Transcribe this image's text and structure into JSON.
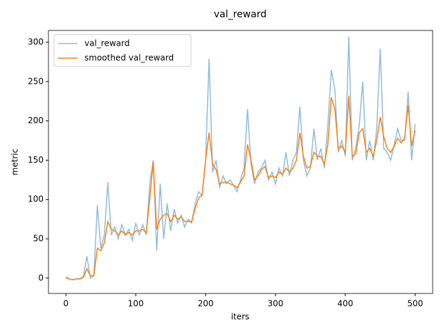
{
  "chart_data": {
    "type": "line",
    "title": "val_reward",
    "x_label": "iters",
    "y_label": "metric",
    "x": [
      0,
      5,
      10,
      15,
      20,
      25,
      30,
      35,
      40,
      45,
      50,
      55,
      60,
      65,
      70,
      75,
      80,
      85,
      90,
      95,
      100,
      105,
      110,
      115,
      120,
      125,
      130,
      135,
      140,
      145,
      150,
      155,
      160,
      165,
      170,
      175,
      180,
      185,
      190,
      195,
      200,
      205,
      210,
      215,
      220,
      225,
      230,
      235,
      240,
      245,
      250,
      255,
      260,
      265,
      270,
      275,
      280,
      285,
      290,
      295,
      300,
      305,
      310,
      315,
      320,
      325,
      330,
      335,
      340,
      345,
      350,
      355,
      360,
      365,
      370,
      375,
      380,
      385,
      390,
      395,
      400,
      405,
      410,
      415,
      420,
      425,
      430,
      435,
      440,
      445,
      450,
      455,
      460,
      465,
      470,
      475,
      480,
      485,
      490,
      495,
      500
    ],
    "series": [
      {
        "name": "val_reward",
        "color": "#1f77b4",
        "alpha": 0.5,
        "values": [
          2,
          -1,
          -2,
          -1,
          -1,
          2,
          28,
          0,
          3,
          93,
          38,
          55,
          122,
          55,
          65,
          50,
          68,
          55,
          62,
          48,
          70,
          55,
          68,
          55,
          120,
          150,
          35,
          120,
          50,
          95,
          60,
          88,
          70,
          80,
          65,
          75,
          70,
          95,
          110,
          105,
          150,
          279,
          135,
          150,
          115,
          130,
          120,
          125,
          118,
          110,
          125,
          140,
          215,
          145,
          120,
          135,
          140,
          150,
          125,
          135,
          120,
          140,
          130,
          160,
          130,
          150,
          160,
          218,
          150,
          130,
          140,
          190,
          150,
          165,
          140,
          195,
          265,
          240,
          160,
          175,
          155,
          307,
          150,
          165,
          195,
          250,
          150,
          175,
          150,
          190,
          292,
          165,
          160,
          150,
          170,
          190,
          175,
          175,
          237,
          150,
          196
        ]
      },
      {
        "name": "smoothed val_reward",
        "color": "#ff7f0e",
        "alpha": 1,
        "values": [
          0,
          -1,
          -2,
          -1,
          -1,
          1,
          12,
          3,
          3,
          38,
          35,
          45,
          72,
          62,
          60,
          55,
          60,
          55,
          58,
          55,
          60,
          60,
          62,
          58,
          100,
          148,
          62,
          75,
          80,
          82,
          72,
          80,
          75,
          78,
          72,
          72,
          72,
          88,
          102,
          106,
          150,
          185,
          145,
          138,
          120,
          122,
          122,
          120,
          118,
          115,
          122,
          130,
          170,
          150,
          125,
          130,
          138,
          142,
          128,
          130,
          128,
          135,
          132,
          140,
          135,
          140,
          150,
          185,
          155,
          140,
          142,
          160,
          155,
          155,
          145,
          170,
          230,
          215,
          165,
          168,
          160,
          232,
          155,
          158,
          185,
          190,
          160,
          165,
          155,
          175,
          205,
          180,
          165,
          160,
          168,
          178,
          172,
          178,
          220,
          168,
          188
        ]
      }
    ],
    "xlim": [
      -25,
      525
    ],
    "ylim": [
      -19.5,
      315
    ],
    "xticks": [
      0,
      100,
      200,
      300,
      400,
      500
    ],
    "yticks": [
      0,
      50,
      100,
      150,
      200,
      250,
      300
    ],
    "legend": "upper left"
  }
}
